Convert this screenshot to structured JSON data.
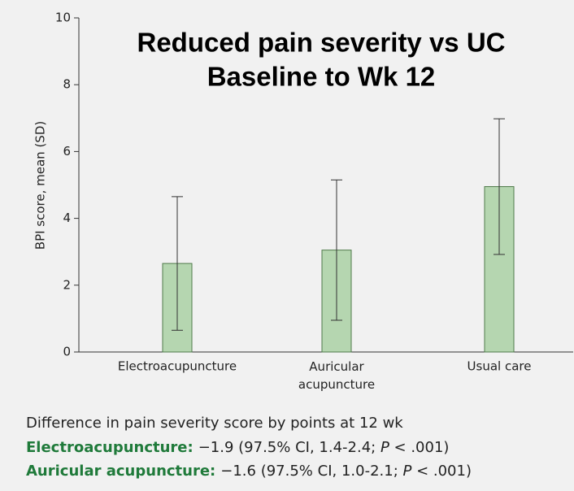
{
  "chart_data": {
    "type": "bar",
    "title": [
      "Reduced pain severity vs UC",
      "Baseline to Wk 12"
    ],
    "ylabel": "BPI score, mean (SD)",
    "categories": [
      "Electroacupuncture",
      "Auricular acupuncture",
      "Usual care"
    ],
    "values": [
      2.65,
      3.05,
      4.95
    ],
    "errors": [
      2.0,
      2.1,
      2.03
    ],
    "color": "#b5d6b0",
    "edge_color": "#4f7a4a",
    "ylim": [
      0,
      10
    ],
    "yticks": [
      0,
      2,
      4,
      6,
      8,
      10
    ],
    "grid": false,
    "footnote": {
      "heading": "Difference in pain severity score by points at 12 wk",
      "lines": [
        {
          "label": "Electroacupuncture:",
          "text": [
            "−1.9 (97.5% CI, 1.4-2.4; ",
            "P",
            " < .001)"
          ]
        },
        {
          "label": "Auricular acupuncture:",
          "text": [
            "−1.6 (97.5% CI, 1.0-2.1; ",
            "P",
            " < .001)"
          ]
        }
      ]
    }
  }
}
